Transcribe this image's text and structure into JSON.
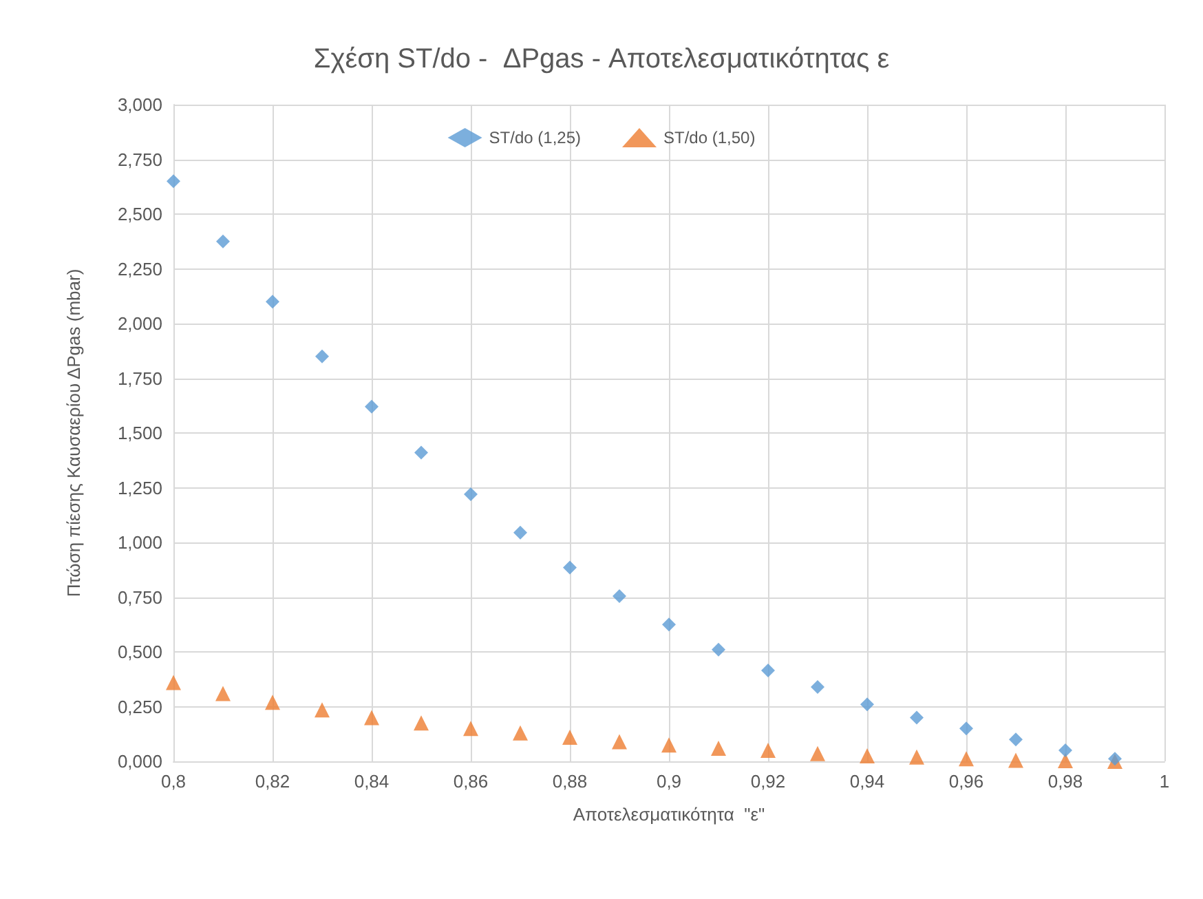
{
  "chart_data": {
    "type": "scatter",
    "title": "Σχέση ST/do -  ΔPgas - Αποτελεσματικότητας ε",
    "xlabel": "Αποτελεσματικότητα  \"ε\"",
    "ylabel": "Πτώση πίεσης Καυσαερίου ΔPgas (mbar)",
    "x": [
      0.8,
      0.81,
      0.82,
      0.83,
      0.84,
      0.85,
      0.86,
      0.87,
      0.88,
      0.89,
      0.9,
      0.91,
      0.92,
      0.93,
      0.94,
      0.95,
      0.96,
      0.97,
      0.98,
      0.99
    ],
    "series": [
      {
        "name": "ST/do (1,25)",
        "color": "#5b9bd5",
        "marker": "diamond",
        "values": [
          2.65,
          2.375,
          2.1,
          1.85,
          1.62,
          1.41,
          1.22,
          1.045,
          0.885,
          0.755,
          0.625,
          0.51,
          0.415,
          0.34,
          0.26,
          0.2,
          0.15,
          0.1,
          0.05,
          0.012
        ]
      },
      {
        "name": "ST/do (1,50)",
        "color": "#ed7d31",
        "marker": "triangle",
        "values": [
          0.36,
          0.31,
          0.27,
          0.235,
          0.2,
          0.175,
          0.15,
          0.13,
          0.11,
          0.09,
          0.075,
          0.06,
          0.05,
          0.035,
          0.025,
          0.02,
          0.012,
          0.005,
          0.003,
          0.0
        ]
      }
    ],
    "xlim": [
      0.8,
      1
    ],
    "xticks": [
      {
        "value": 0.8,
        "label": "0,8"
      },
      {
        "value": 0.82,
        "label": "0,82"
      },
      {
        "value": 0.84,
        "label": "0,84"
      },
      {
        "value": 0.86,
        "label": "0,86"
      },
      {
        "value": 0.88,
        "label": "0,88"
      },
      {
        "value": 0.9,
        "label": "0,9"
      },
      {
        "value": 0.92,
        "label": "0,92"
      },
      {
        "value": 0.94,
        "label": "0,94"
      },
      {
        "value": 0.96,
        "label": "0,96"
      },
      {
        "value": 0.98,
        "label": "0,98"
      },
      {
        "value": 1,
        "label": "1"
      }
    ],
    "ylim": [
      0,
      3
    ],
    "yticks": [
      {
        "value": 0,
        "label": "0,000"
      },
      {
        "value": 0.25,
        "label": "0,250"
      },
      {
        "value": 0.5,
        "label": "0,500"
      },
      {
        "value": 0.75,
        "label": "0,750"
      },
      {
        "value": 1,
        "label": "1,000"
      },
      {
        "value": 1.25,
        "label": "1,250"
      },
      {
        "value": 1.5,
        "label": "1,500"
      },
      {
        "value": 1.75,
        "label": "1,750"
      },
      {
        "value": 2,
        "label": "2,000"
      },
      {
        "value": 2.25,
        "label": "2,250"
      },
      {
        "value": 2.5,
        "label": "2,500"
      },
      {
        "value": 2.75,
        "label": "2,750"
      },
      {
        "value": 3,
        "label": "3,000"
      }
    ],
    "grid": true,
    "legend": "top"
  }
}
